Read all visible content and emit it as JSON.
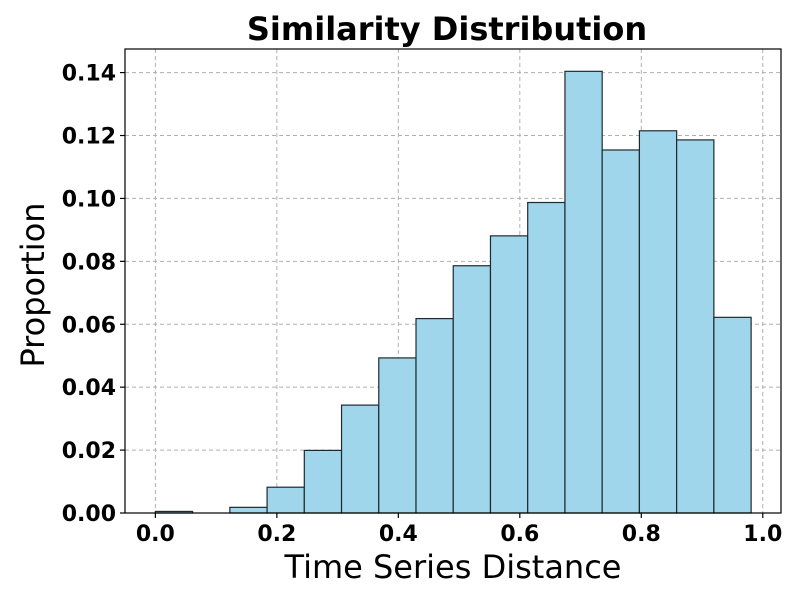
{
  "chart_data": {
    "type": "bar",
    "title": "Similarity Distribution",
    "xlabel": "Time Series Distance",
    "ylabel": "Proportion",
    "xlim": [
      -0.05,
      1.03
    ],
    "ylim": [
      0.0,
      0.1475
    ],
    "grid": true,
    "bar_color": "#9fd6ec",
    "edge_color": "#1f2a30",
    "x_ticks": [
      "0.0",
      "0.2",
      "0.4",
      "0.6",
      "0.8",
      "1.0"
    ],
    "x_tick_values": [
      0.0,
      0.2,
      0.4,
      0.6,
      0.8,
      1.0
    ],
    "y_ticks": [
      "0.00",
      "0.02",
      "0.04",
      "0.06",
      "0.08",
      "0.10",
      "0.12",
      "0.14"
    ],
    "y_tick_values": [
      0.0,
      0.02,
      0.04,
      0.06,
      0.08,
      0.1,
      0.12,
      0.14
    ],
    "bin_edges": [
      0.0,
      0.0613,
      0.1226,
      0.1839,
      0.2452,
      0.3065,
      0.3678,
      0.4291,
      0.4904,
      0.5517,
      0.613,
      0.6743,
      0.7356,
      0.7969,
      0.8582,
      0.9195,
      0.9808
    ],
    "values": [
      0.0005,
      0.0,
      0.0018,
      0.0082,
      0.0199,
      0.0343,
      0.0493,
      0.0618,
      0.0786,
      0.0881,
      0.0987,
      0.1404,
      0.1154,
      0.1215,
      0.1186,
      0.0622
    ]
  }
}
